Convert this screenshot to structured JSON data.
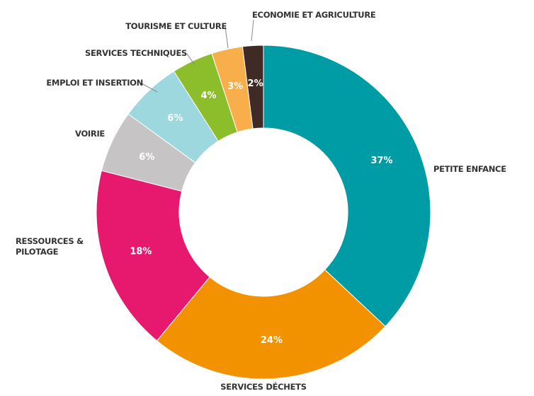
{
  "chart_data": {
    "type": "donut",
    "categories": [
      "PETITE ENFANCE",
      "SERVICES DÉCHETS",
      "RESSOURCES & PILOTAGE",
      "VOIRIE",
      "EMPLOI ET INSERTION",
      "SERVICES TECHNIQUES",
      "TOURISME ET CULTURE",
      "ECONOMIE ET AGRICULTURE"
    ],
    "values": [
      37,
      24,
      18,
      6,
      6,
      4,
      3,
      2
    ],
    "value_labels": [
      "37%",
      "24%",
      "18%",
      "6%",
      "6%",
      "4%",
      "3%",
      "2%"
    ],
    "colors": [
      "#009ca6",
      "#f39200",
      "#e6196e",
      "#c6c4c4",
      "#9dd8df",
      "#8cbd2a",
      "#f9ae4c",
      "#3f2a26"
    ]
  }
}
